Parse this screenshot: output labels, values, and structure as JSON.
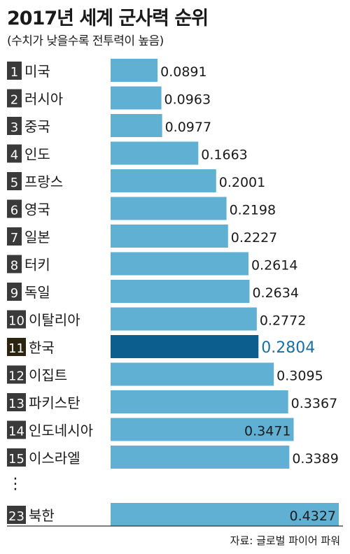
{
  "title": "2017년 세계 군사력 순위",
  "subtitle": "(수치가 낮을수록 전투력이 높음)",
  "source": "자료: 글로벌 파이어 파워",
  "colors": {
    "bar": "#5fb0d3",
    "highlight_bar": "#0c5e8f",
    "rank_box": "#3a3a3a",
    "highlight_rank_box": "#2a2410",
    "highlight_value": "#1a6fa6",
    "text": "#1a1a1a"
  },
  "chart_data": {
    "type": "bar",
    "orientation": "horizontal",
    "categories": [
      "미국",
      "러시아",
      "중국",
      "인도",
      "프랑스",
      "영국",
      "일본",
      "터키",
      "독일",
      "이탈리아",
      "한국",
      "이집트",
      "파키스탄",
      "인도네시아",
      "이스라엘",
      "북한"
    ],
    "ranks": [
      "1",
      "2",
      "3",
      "4",
      "5",
      "6",
      "7",
      "8",
      "9",
      "10",
      "11",
      "12",
      "13",
      "14",
      "15",
      "23"
    ],
    "values": [
      0.0891,
      0.0963,
      0.0977,
      0.1663,
      0.2001,
      0.2198,
      0.2227,
      0.2614,
      0.2634,
      0.2772,
      0.2804,
      0.3095,
      0.3367,
      0.3471,
      0.3389,
      0.4327
    ],
    "value_labels": [
      "0.0891",
      "0.0963",
      "0.0977",
      "0.1663",
      "0.2001",
      "0.2198",
      "0.2227",
      "0.2614",
      "0.2634",
      "0.2772",
      "0.2804",
      "0.3095",
      "0.3367",
      "0.3471",
      "0.3389",
      "0.4327"
    ],
    "highlight_index": 10,
    "gap_after_index": 14,
    "gap_marker": "⋮",
    "xlim": [
      0,
      0.4327
    ],
    "grid": false,
    "legend": "none"
  }
}
